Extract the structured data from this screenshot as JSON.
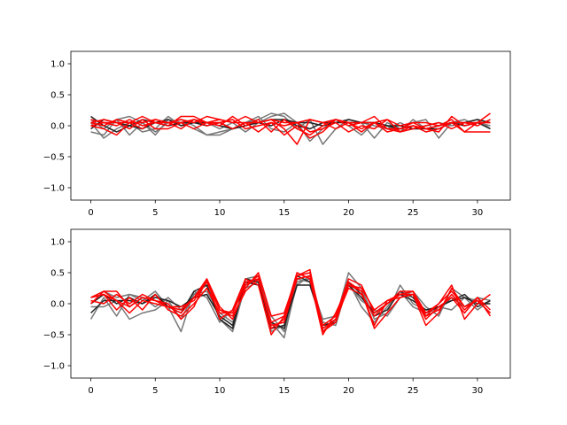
{
  "chart_data": [
    {
      "type": "line",
      "title": "",
      "xlabel": "",
      "ylabel": "",
      "xlim": [
        -1.55,
        32.55
      ],
      "ylim": [
        -1.2,
        1.2
      ],
      "xticks": [
        0,
        5,
        10,
        15,
        20,
        25,
        30
      ],
      "yticks": [
        -1.0,
        -0.5,
        0.0,
        0.5,
        1.0
      ],
      "xtick_labels": [
        "0",
        "5",
        "10",
        "15",
        "20",
        "25",
        "30"
      ],
      "ytick_labels": [
        "−1.0",
        "−0.5",
        "0.0",
        "0.5",
        "1.0"
      ],
      "grid": false,
      "x": [
        0,
        1,
        2,
        3,
        4,
        5,
        6,
        7,
        8,
        9,
        10,
        11,
        12,
        13,
        14,
        15,
        16,
        17,
        18,
        19,
        20,
        21,
        22,
        23,
        24,
        25,
        26,
        27,
        28,
        29,
        30,
        31
      ],
      "series": [
        {
          "color": "#777777",
          "values": [
            -0.1,
            -0.15,
            0.1,
            0.15,
            0.05,
            -0.1,
            0.05,
            0.1,
            0.0,
            -0.15,
            -0.15,
            -0.05,
            0.05,
            0.1,
            0.2,
            0.15,
            -0.05,
            0.1,
            -0.3,
            -0.05,
            0.1,
            0.05,
            -0.2,
            0.05,
            -0.05,
            0.05,
            0.1,
            -0.2,
            0.05,
            0.0,
            0.05,
            0.0
          ]
        },
        {
          "color": "#777777",
          "values": [
            0.05,
            -0.2,
            -0.05,
            0.05,
            -0.1,
            -0.05,
            0.15,
            0.0,
            0.1,
            0.05,
            -0.05,
            0.05,
            -0.1,
            0.05,
            0.15,
            0.2,
            0.05,
            -0.25,
            -0.05,
            0.1,
            0.05,
            0.05,
            0.0,
            -0.05,
            0.05,
            -0.05,
            0.0,
            0.05,
            0.0,
            0.05,
            0.1,
            -0.05
          ]
        },
        {
          "color": "#777777",
          "values": [
            0.1,
            -0.05,
            0.1,
            -0.15,
            0.05,
            -0.15,
            0.1,
            0.05,
            -0.05,
            -0.15,
            -0.1,
            -0.05,
            0.05,
            0.15,
            -0.05,
            -0.1,
            0.05,
            -0.05,
            0.05,
            0.1,
            0.0,
            -0.15,
            0.05,
            0.0,
            -0.1,
            0.1,
            -0.05,
            0.0,
            0.05,
            0.1,
            0.0,
            0.1
          ]
        },
        {
          "color": "#222222",
          "values": [
            0.15,
            0.0,
            -0.1,
            0.0,
            0.1,
            0.05,
            0.0,
            0.05,
            0.05,
            0.0,
            0.05,
            -0.05,
            0.0,
            0.05,
            0.1,
            0.1,
            0.0,
            -0.05,
            0.05,
            0.05,
            0.05,
            0.05,
            0.05,
            0.0,
            -0.05,
            0.0,
            -0.05,
            0.0,
            0.05,
            0.0,
            0.05,
            -0.05
          ]
        },
        {
          "color": "#222222",
          "values": [
            -0.05,
            0.1,
            0.05,
            0.0,
            -0.05,
            0.05,
            0.1,
            0.0,
            0.05,
            0.05,
            0.0,
            -0.05,
            0.05,
            0.05,
            0.0,
            0.1,
            0.05,
            0.05,
            0.0,
            0.05,
            0.1,
            0.05,
            0.05,
            0.0,
            0.0,
            -0.05,
            -0.05,
            -0.05,
            0.05,
            0.05,
            0.1,
            0.05
          ]
        },
        {
          "color": "#ff0000",
          "values": [
            0.05,
            0.0,
            0.1,
            0.05,
            0.15,
            0.05,
            0.0,
            0.15,
            0.15,
            0.05,
            0.0,
            0.15,
            0.0,
            0.1,
            -0.1,
            0.1,
            -0.05,
            -0.15,
            0.0,
            0.1,
            0.0,
            0.05,
            0.15,
            -0.05,
            -0.05,
            0.05,
            -0.05,
            -0.1,
            0.15,
            0.0,
            0.05,
            0.2
          ]
        },
        {
          "color": "#ff0000",
          "values": [
            0.0,
            -0.05,
            -0.15,
            0.05,
            -0.05,
            0.1,
            0.05,
            0.1,
            0.05,
            0.15,
            0.1,
            0.05,
            0.15,
            0.05,
            0.1,
            -0.05,
            -0.3,
            0.1,
            0.05,
            -0.05,
            0.05,
            -0.05,
            0.05,
            -0.1,
            -0.05,
            0.0,
            -0.1,
            -0.05,
            0.05,
            -0.1,
            0.05,
            0.05
          ]
        },
        {
          "color": "#ff0000",
          "values": [
            0.1,
            0.05,
            0.05,
            -0.05,
            0.1,
            -0.05,
            -0.05,
            0.05,
            -0.05,
            0.05,
            0.05,
            -0.05,
            0.05,
            -0.1,
            0.05,
            0.0,
            0.05,
            -0.1,
            -0.05,
            0.05,
            -0.1,
            0.0,
            -0.05,
            0.1,
            -0.1,
            -0.05,
            0.0,
            0.05,
            -0.05,
            0.05,
            0.0,
            0.1
          ]
        },
        {
          "color": "#ff0000",
          "values": [
            0.0,
            0.05,
            0.0,
            0.1,
            0.0,
            0.05,
            0.05,
            -0.05,
            0.1,
            0.0,
            0.05,
            0.1,
            -0.05,
            0.0,
            0.05,
            -0.15,
            0.0,
            -0.2,
            -0.1,
            0.1,
            0.05,
            -0.1,
            0.05,
            -0.05,
            -0.1,
            0.0,
            -0.05,
            0.0,
            0.1,
            -0.1,
            -0.1,
            -0.1
          ]
        },
        {
          "color": "#ff0000",
          "values": [
            0.05,
            0.1,
            0.05,
            0.05,
            0.05,
            0.1,
            0.05,
            0.05,
            0.1,
            0.05,
            0.1,
            0.05,
            0.05,
            0.05,
            0.1,
            0.05,
            0.05,
            0.1,
            0.05,
            0.1,
            0.05,
            0.05,
            0.05,
            0.1,
            0.0,
            0.05,
            0.05,
            0.0,
            0.05,
            0.05,
            0.05,
            0.05
          ]
        }
      ]
    },
    {
      "type": "line",
      "title": "",
      "xlabel": "",
      "ylabel": "",
      "xlim": [
        -1.55,
        32.55
      ],
      "ylim": [
        -1.2,
        1.2
      ],
      "xticks": [
        0,
        5,
        10,
        15,
        20,
        25,
        30
      ],
      "yticks": [
        -1.0,
        -0.5,
        0.0,
        0.5,
        1.0
      ],
      "xtick_labels": [
        "0",
        "5",
        "10",
        "15",
        "20",
        "25",
        "30"
      ],
      "ytick_labels": [
        "−1.0",
        "−0.5",
        "0.0",
        "0.5",
        "1.0"
      ],
      "grid": false,
      "x": [
        0,
        1,
        2,
        3,
        4,
        5,
        6,
        7,
        8,
        9,
        10,
        11,
        12,
        13,
        14,
        15,
        16,
        17,
        18,
        19,
        20,
        21,
        22,
        23,
        24,
        25,
        26,
        27,
        28,
        29,
        30,
        31
      ],
      "series": [
        {
          "color": "#777777",
          "values": [
            -0.25,
            0.1,
            -0.2,
            0.15,
            0.05,
            0.2,
            -0.05,
            -0.45,
            0.2,
            0.1,
            -0.3,
            -0.1,
            0.4,
            0.45,
            -0.3,
            -0.55,
            0.35,
            0.4,
            -0.45,
            -0.25,
            0.5,
            0.25,
            -0.25,
            -0.15,
            0.3,
            0.0,
            -0.1,
            -0.1,
            0.1,
            -0.05,
            0.1,
            0.05
          ]
        },
        {
          "color": "#777777",
          "values": [
            -0.05,
            -0.05,
            0.05,
            -0.25,
            -0.15,
            -0.1,
            0.05,
            -0.25,
            0.15,
            0.3,
            -0.25,
            -0.45,
            0.3,
            0.4,
            -0.45,
            -0.35,
            0.4,
            0.35,
            -0.25,
            -0.2,
            0.3,
            0.05,
            -0.1,
            -0.2,
            0.1,
            0.2,
            -0.05,
            -0.2,
            0.25,
            0.1,
            -0.1,
            0.05
          ]
        },
        {
          "color": "#777777",
          "values": [
            0.1,
            0.2,
            0.1,
            0.15,
            0.1,
            -0.05,
            0.1,
            -0.1,
            0.15,
            0.2,
            -0.15,
            -0.3,
            0.25,
            0.35,
            -0.2,
            -0.45,
            0.3,
            0.45,
            -0.3,
            -0.35,
            0.35,
            -0.05,
            -0.3,
            -0.05,
            0.2,
            -0.05,
            -0.15,
            -0.05,
            -0.1,
            0.1,
            0.05,
            -0.15
          ]
        },
        {
          "color": "#222222",
          "values": [
            -0.15,
            0.05,
            0.05,
            0.05,
            0.0,
            0.15,
            -0.05,
            -0.15,
            0.2,
            0.3,
            -0.25,
            -0.4,
            0.4,
            0.35,
            -0.4,
            -0.35,
            0.3,
            0.3,
            -0.35,
            -0.3,
            0.35,
            0.15,
            -0.2,
            -0.1,
            0.2,
            0.1,
            -0.15,
            -0.05,
            0.05,
            0.15,
            -0.05,
            0.05
          ]
        },
        {
          "color": "#222222",
          "values": [
            0.0,
            0.15,
            0.0,
            0.1,
            0.0,
            0.1,
            0.05,
            -0.05,
            0.1,
            0.15,
            -0.2,
            -0.35,
            0.35,
            0.3,
            -0.3,
            -0.4,
            0.45,
            0.35,
            -0.4,
            -0.25,
            0.3,
            0.1,
            -0.15,
            0.0,
            0.15,
            0.05,
            -0.1,
            -0.05,
            0.05,
            0.1,
            0.0,
            0.0
          ]
        },
        {
          "color": "#ff0000",
          "values": [
            0.1,
            0.2,
            0.2,
            -0.05,
            0.1,
            0.05,
            -0.05,
            -0.15,
            0.1,
            0.4,
            -0.05,
            -0.25,
            0.25,
            0.5,
            -0.2,
            -0.15,
            0.45,
            0.5,
            -0.35,
            -0.2,
            0.4,
            0.3,
            -0.15,
            0.0,
            0.2,
            0.2,
            -0.2,
            0.0,
            0.3,
            -0.25,
            0.0,
            0.15
          ]
        },
        {
          "color": "#ff0000",
          "values": [
            0.05,
            0.0,
            0.15,
            0.0,
            0.15,
            0.05,
            0.0,
            -0.25,
            -0.05,
            0.4,
            -0.25,
            -0.1,
            0.4,
            0.3,
            -0.5,
            -0.2,
            0.5,
            0.4,
            -0.5,
            -0.15,
            0.3,
            0.25,
            -0.1,
            0.05,
            0.15,
            0.15,
            -0.35,
            -0.15,
            0.25,
            -0.05,
            0.05,
            -0.15
          ]
        },
        {
          "color": "#ff0000",
          "values": [
            0.1,
            0.15,
            -0.1,
            0.1,
            -0.1,
            0.15,
            -0.1,
            -0.2,
            0.0,
            0.25,
            -0.15,
            -0.15,
            0.3,
            0.45,
            -0.4,
            -0.25,
            0.45,
            0.55,
            -0.45,
            -0.3,
            0.3,
            0.2,
            -0.35,
            0.05,
            0.1,
            0.15,
            -0.2,
            -0.1,
            0.15,
            -0.1,
            0.1,
            -0.2
          ]
        },
        {
          "color": "#ff0000",
          "values": [
            0.0,
            0.2,
            0.05,
            -0.15,
            0.05,
            0.0,
            -0.05,
            -0.05,
            0.05,
            0.35,
            -0.1,
            -0.2,
            0.2,
            0.4,
            -0.35,
            -0.3,
            0.4,
            0.45,
            -0.45,
            -0.25,
            0.35,
            0.2,
            -0.4,
            -0.15,
            0.1,
            0.15,
            -0.25,
            -0.05,
            0.1,
            -0.15,
            0.1,
            -0.1
          ]
        },
        {
          "color": "#ff0000",
          "values": [
            0.1,
            0.15,
            0.05,
            -0.05,
            0.1,
            0.05,
            -0.05,
            -0.1,
            0.1,
            0.35,
            -0.1,
            -0.15,
            0.35,
            0.4,
            -0.3,
            -0.2,
            0.5,
            0.4,
            -0.4,
            -0.25,
            0.25,
            0.15,
            -0.2,
            0.0,
            0.15,
            0.2,
            -0.15,
            0.0,
            0.2,
            -0.05,
            0.05,
            -0.15
          ]
        }
      ]
    }
  ]
}
